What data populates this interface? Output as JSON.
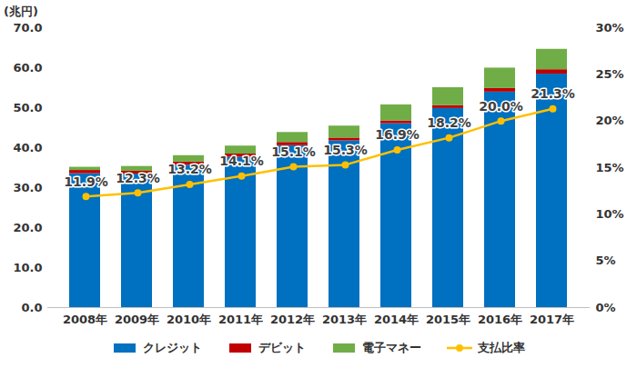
{
  "chart_data": {
    "type": "bar",
    "ylabel": "(兆円)",
    "categories": [
      "2008年",
      "2009年",
      "2010年",
      "2011年",
      "2012年",
      "2013年",
      "2014年",
      "2015年",
      "2016年",
      "2017年"
    ],
    "stacked": true,
    "grid": false,
    "legend": "bottom",
    "ylim": [
      0,
      70
    ],
    "yticks": [
      {
        "value": 0,
        "label": "0.0"
      },
      {
        "value": 10,
        "label": "10.0"
      },
      {
        "value": 20,
        "label": "20.0"
      },
      {
        "value": 30,
        "label": "30.0"
      },
      {
        "value": 40,
        "label": "40.0"
      },
      {
        "value": 50,
        "label": "50.0"
      },
      {
        "value": 60,
        "label": "60.0"
      },
      {
        "value": 70,
        "label": "70.0"
      }
    ],
    "y2lim": [
      0,
      30
    ],
    "y2ticks": [
      {
        "value": 0,
        "label": "0%"
      },
      {
        "value": 5,
        "label": "5%"
      },
      {
        "value": 10,
        "label": "10%"
      },
      {
        "value": 15,
        "label": "15%"
      },
      {
        "value": 20,
        "label": "20%"
      },
      {
        "value": 25,
        "label": "25%"
      },
      {
        "value": 30,
        "label": "30%"
      }
    ],
    "series": [
      {
        "name": "クレジット",
        "type": "bar",
        "color": "#0070c0",
        "values": [
          33.5,
          33.4,
          35.6,
          37.6,
          40.5,
          41.7,
          46.0,
          49.8,
          53.9,
          58.4
        ]
      },
      {
        "name": "デビット",
        "type": "bar",
        "color": "#c00000",
        "values": [
          0.8,
          0.7,
          0.8,
          0.8,
          0.8,
          0.7,
          0.7,
          0.7,
          0.9,
          1.1
        ]
      },
      {
        "name": "電子マネー",
        "type": "bar",
        "color": "#70ad47",
        "values": [
          0.8,
          1.2,
          1.6,
          2.0,
          2.5,
          3.0,
          4.0,
          4.5,
          5.1,
          5.1
        ]
      },
      {
        "name": "支払比率",
        "type": "line",
        "axis": "y2",
        "color": "#ffc000",
        "marker": "circle",
        "data_labels": true,
        "values": [
          11.9,
          12.3,
          13.2,
          14.1,
          15.1,
          15.3,
          16.9,
          18.2,
          20.0,
          21.3
        ],
        "value_labels": [
          "11.9%",
          "12.3%",
          "13.2%",
          "14.1%",
          "15.1%",
          "15.3%",
          "16.9%",
          "18.2%",
          "20.0%",
          "21.3%"
        ]
      }
    ]
  }
}
